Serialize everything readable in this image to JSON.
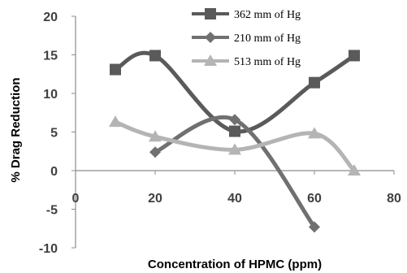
{
  "chart_data": {
    "type": "line",
    "title": "",
    "xlabel": "Concentration of HPMC (ppm)",
    "ylabel": "% Drag Reduction",
    "xlim": [
      0,
      80
    ],
    "ylim": [
      -10,
      20
    ],
    "xticks": [
      0,
      20,
      40,
      60,
      80
    ],
    "yticks": [
      -10,
      -5,
      0,
      5,
      10,
      15,
      20
    ],
    "xtick_labels": [
      "0",
      "20",
      "40",
      "60",
      "80"
    ],
    "ytick_labels": [
      "-10",
      "-5",
      "0",
      "5",
      "10",
      "15",
      "20"
    ],
    "grid": false,
    "legend_position": "top-right",
    "series": [
      {
        "name": "362 mm of Hg",
        "color": "#5a5a5a",
        "marker": "square",
        "x": [
          10,
          20,
          40,
          60,
          70
        ],
        "y": [
          13.1,
          14.9,
          5.1,
          11.4,
          14.9
        ]
      },
      {
        "name": "210 mm of Hg",
        "color": "#707070",
        "marker": "diamond",
        "x": [
          20,
          40,
          60
        ],
        "y": [
          2.4,
          6.6,
          -7.3
        ]
      },
      {
        "name": "513 mm of Hg",
        "color": "#b4b4b4",
        "marker": "triangle",
        "x": [
          10,
          20,
          40,
          60,
          70
        ],
        "y": [
          6.3,
          4.4,
          2.7,
          4.8,
          0.0
        ]
      }
    ]
  }
}
